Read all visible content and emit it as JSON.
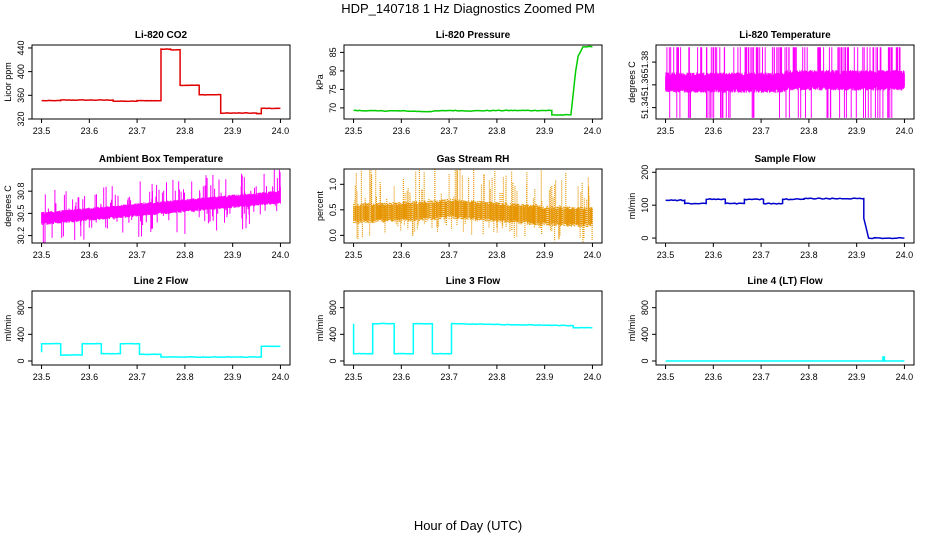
{
  "figure": {
    "title": "HDP_140718  1 Hz Diagnostics Zoomed PM",
    "xlabel": "Hour of Day (UTC)"
  },
  "chart_data": [
    {
      "type": "line",
      "title": "Li-820 CO2",
      "ylabel": "Licor ppm",
      "color": "#e00000",
      "xlim": [
        23.5,
        24.0
      ],
      "ylim": [
        320,
        445
      ],
      "xticks": [
        "23.5",
        "23.6",
        "23.7",
        "23.8",
        "23.9",
        "24.0"
      ],
      "yticks": [
        "320",
        "360",
        "400",
        "440"
      ],
      "noise": 0.4,
      "x": [
        23.5,
        23.54,
        23.54,
        23.6,
        23.6,
        23.65,
        23.65,
        23.7,
        23.7,
        23.75,
        23.75,
        23.77,
        23.77,
        23.79,
        23.79,
        23.83,
        23.83,
        23.875,
        23.875,
        23.95,
        23.95,
        23.96,
        23.96,
        24.0
      ],
      "y": [
        351,
        351,
        352,
        352,
        352,
        352,
        350,
        350,
        351,
        351,
        438,
        438,
        437,
        437,
        377,
        377,
        361,
        361,
        330,
        330,
        329,
        329,
        338,
        338
      ]
    },
    {
      "type": "line",
      "title": "Li-820 Pressure",
      "ylabel": "kPa",
      "color": "#00cc00",
      "xlim": [
        23.5,
        24.0
      ],
      "ylim": [
        67,
        87
      ],
      "xticks": [
        "23.5",
        "23.6",
        "23.7",
        "23.8",
        "23.9",
        "24.0"
      ],
      "yticks": [
        "70",
        "75",
        "80",
        "85"
      ],
      "noise": 0.1,
      "x": [
        23.5,
        23.55,
        23.6,
        23.65,
        23.7,
        23.75,
        23.8,
        23.85,
        23.9,
        23.915,
        23.915,
        23.955,
        23.96,
        23.965,
        23.97,
        23.98,
        24.0
      ],
      "y": [
        69.3,
        69.2,
        69.2,
        69.0,
        69.3,
        69.2,
        69.3,
        69.3,
        69.3,
        69.3,
        68.1,
        68.1,
        74.0,
        80.0,
        84.0,
        86.5,
        86.5
      ]
    },
    {
      "type": "line",
      "title": "Li-820 Temperature",
      "ylabel": "degrees C",
      "color": "#ff00ff",
      "xlim": [
        23.5,
        24.0
      ],
      "ylim": [
        51.33,
        51.395
      ],
      "xticks": [
        "23.5",
        "23.6",
        "23.7",
        "23.8",
        "23.9",
        "24.0"
      ],
      "yticks": [
        "51.34",
        "51.36",
        "51.38"
      ],
      "band": true,
      "x": [
        23.5,
        23.75,
        23.75,
        24.0
      ],
      "y": [
        51.362,
        51.362,
        51.364,
        51.364
      ],
      "band_half": 0.009,
      "spike_top": 51.393,
      "spike_bottom": 51.331
    },
    {
      "type": "line",
      "title": "Ambient Box Temperature",
      "ylabel": "degrees C",
      "color": "#ff00ff",
      "xlim": [
        23.5,
        24.0
      ],
      "ylim": [
        30.1,
        31.1
      ],
      "xticks": [
        "23.5",
        "23.6",
        "23.7",
        "23.8",
        "23.9",
        "24.0"
      ],
      "yticks": [
        "30.2",
        "30.5",
        "30.8"
      ],
      "band": true,
      "x": [
        23.5,
        24.0
      ],
      "y": [
        30.43,
        30.72
      ],
      "band_half": 0.09,
      "spike_top": 0.3,
      "spike_bottom": 0.3
    },
    {
      "type": "scatter",
      "title": "Gas Stream RH",
      "ylabel": "percent",
      "color": "#e69500",
      "xlim": [
        23.5,
        24.0
      ],
      "ylim": [
        -0.15,
        1.3
      ],
      "xticks": [
        "23.5",
        "23.6",
        "23.7",
        "23.8",
        "23.9",
        "24.0"
      ],
      "yticks": [
        "0.0",
        "0.5",
        "1.0"
      ],
      "band": true,
      "x": [
        23.5,
        23.65,
        23.7,
        23.8,
        23.9,
        24.0
      ],
      "y": [
        0.42,
        0.48,
        0.52,
        0.45,
        0.38,
        0.35
      ],
      "band_half": 0.2,
      "spike_top": 0.7,
      "spike_bottom": 0.3
    },
    {
      "type": "line",
      "title": "Sample Flow",
      "ylabel": "ml/min",
      "color": "#0000cc",
      "xlim": [
        23.5,
        24.0
      ],
      "ylim": [
        -15,
        210
      ],
      "xticks": [
        "23.5",
        "23.6",
        "23.7",
        "23.8",
        "23.9",
        "24.0"
      ],
      "yticks": [
        "0",
        "100",
        "200"
      ],
      "noise": 1.5,
      "x": [
        23.5,
        23.54,
        23.54,
        23.585,
        23.585,
        23.625,
        23.625,
        23.665,
        23.665,
        23.705,
        23.705,
        23.745,
        23.745,
        23.79,
        23.79,
        23.915,
        23.915,
        23.925,
        23.925,
        24.0
      ],
      "y": [
        115,
        115,
        105,
        105,
        118,
        118,
        105,
        105,
        118,
        118,
        105,
        105,
        118,
        118,
        120,
        120,
        60,
        0,
        0,
        0
      ]
    },
    {
      "type": "line",
      "title": "Line 2 Flow",
      "ylabel": "ml/min",
      "color": "#00ffff",
      "xlim": [
        23.5,
        24.0
      ],
      "ylim": [
        -60,
        1050
      ],
      "xticks": [
        "23.5",
        "23.6",
        "23.7",
        "23.8",
        "23.9",
        "24.0"
      ],
      "yticks": [
        "0",
        "400",
        "800"
      ],
      "noise": 3,
      "x": [
        23.5,
        23.5,
        23.54,
        23.54,
        23.585,
        23.585,
        23.625,
        23.625,
        23.665,
        23.665,
        23.705,
        23.705,
        23.75,
        23.75,
        23.96,
        23.96,
        24.0
      ],
      "y": [
        130,
        260,
        260,
        90,
        90,
        260,
        260,
        110,
        110,
        260,
        260,
        100,
        100,
        60,
        60,
        220,
        220
      ]
    },
    {
      "type": "line",
      "title": "Line 3 Flow",
      "ylabel": "ml/min",
      "color": "#00ffff",
      "xlim": [
        23.5,
        24.0
      ],
      "ylim": [
        -60,
        1050
      ],
      "xticks": [
        "23.5",
        "23.6",
        "23.7",
        "23.8",
        "23.9",
        "24.0"
      ],
      "yticks": [
        "0",
        "400",
        "800"
      ],
      "noise": 3,
      "x": [
        23.5,
        23.5,
        23.5,
        23.54,
        23.54,
        23.585,
        23.585,
        23.625,
        23.625,
        23.665,
        23.665,
        23.705,
        23.705,
        23.96,
        23.96,
        24.0
      ],
      "y": [
        400,
        560,
        110,
        110,
        560,
        560,
        110,
        110,
        560,
        560,
        110,
        110,
        560,
        530,
        500,
        500
      ]
    },
    {
      "type": "line",
      "title": "Line 4 (LT) Flow",
      "ylabel": "ml/min",
      "color": "#00ffff",
      "xlim": [
        23.5,
        24.0
      ],
      "ylim": [
        -60,
        1050
      ],
      "xticks": [
        "23.5",
        "23.6",
        "23.7",
        "23.8",
        "23.9",
        "24.0"
      ],
      "yticks": [
        "0",
        "400",
        "800"
      ],
      "noise": 0,
      "x": [
        23.5,
        23.955,
        23.955,
        23.958,
        23.958,
        24.0
      ],
      "y": [
        0,
        0,
        60,
        60,
        0,
        0
      ]
    }
  ]
}
